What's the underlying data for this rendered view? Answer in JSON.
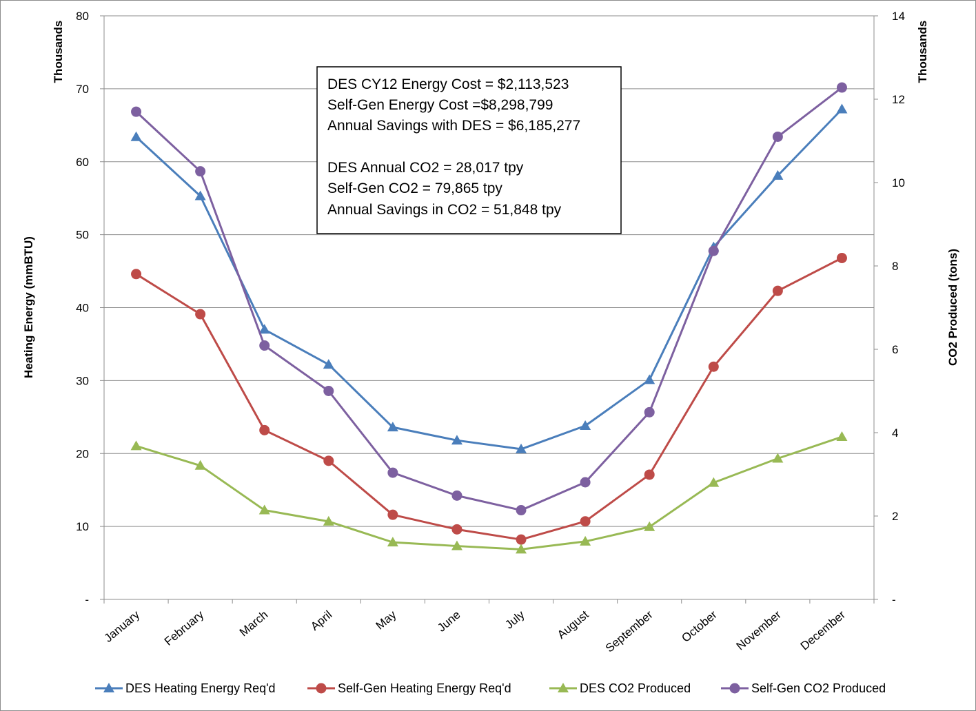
{
  "chart_data": {
    "type": "line",
    "categories": [
      "January",
      "February",
      "March",
      "April",
      "May",
      "June",
      "July",
      "August",
      "September",
      "October",
      "November",
      "December"
    ],
    "left_axis": {
      "label": "Heating Energy (mmBTU)",
      "units_label": "Thousands",
      "ylim": [
        0,
        80
      ],
      "ticks": [
        "-",
        "10",
        "20",
        "30",
        "40",
        "50",
        "60",
        "70",
        "80"
      ]
    },
    "right_axis": {
      "label": "CO2  Produced (tons)",
      "units_label": "Thousands",
      "ylim": [
        0,
        14
      ],
      "ticks": [
        "-",
        "2",
        "4",
        "6",
        "8",
        "10",
        "12",
        "14"
      ]
    },
    "series": [
      {
        "name": "DES Heating Energy Req'd",
        "axis": "left",
        "marker": "triangle",
        "color": "#4a7ebb",
        "values": [
          63.4,
          55.3,
          37.0,
          32.2,
          23.6,
          21.8,
          20.6,
          23.8,
          30.1,
          48.3,
          58.1,
          67.2
        ]
      },
      {
        "name": "Self-Gen Heating Energy Req'd",
        "axis": "left",
        "marker": "circle",
        "color": "#be4b48",
        "values": [
          44.6,
          39.1,
          23.2,
          19.0,
          11.6,
          9.6,
          8.2,
          10.7,
          17.1,
          31.9,
          42.3,
          46.8
        ]
      },
      {
        "name": "DES CO2 Produced",
        "axis": "right",
        "marker": "triangle",
        "color": "#98b954",
        "values": [
          3.68,
          3.21,
          2.14,
          1.87,
          1.37,
          1.28,
          1.2,
          1.39,
          1.74,
          2.8,
          3.38,
          3.9
        ]
      },
      {
        "name": "Self-Gen CO2 Produced",
        "axis": "right",
        "marker": "circle",
        "color": "#7d60a0",
        "values": [
          11.7,
          10.27,
          6.09,
          5.0,
          3.04,
          2.49,
          2.14,
          2.81,
          4.49,
          8.36,
          11.1,
          12.28
        ]
      }
    ],
    "annotation": [
      "DES CY12 Energy Cost = $2,113,523",
      "Self-Gen Energy Cost =$8,298,799",
      "Annual Savings with DES = $6,185,277",
      "",
      "DES Annual CO2 = 28,017 tpy",
      "Self-Gen CO2 = 79,865 tpy",
      "Annual Savings in CO2 = 51,848 tpy"
    ],
    "grid": true,
    "legend_position": "bottom"
  }
}
